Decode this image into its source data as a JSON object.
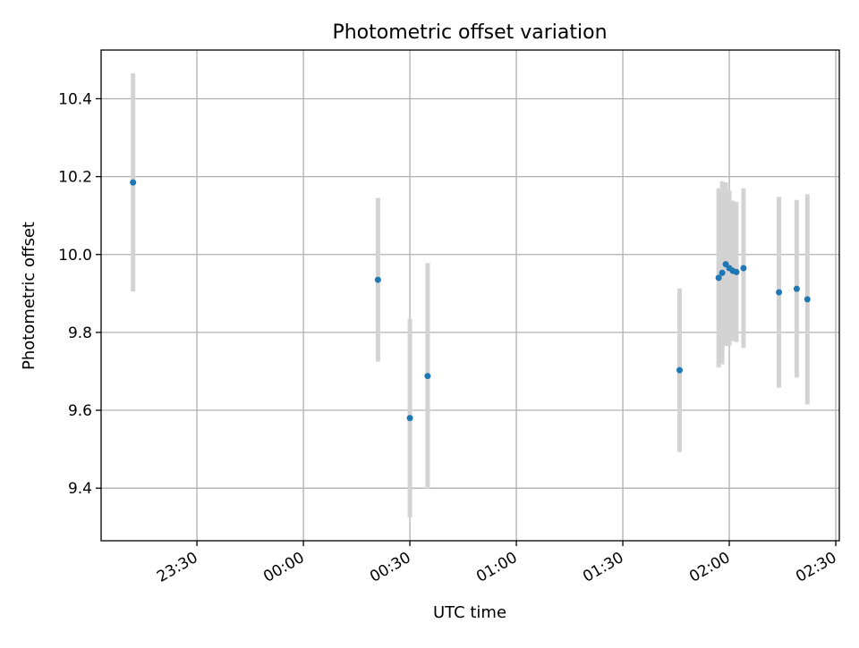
{
  "chart_data": {
    "type": "scatter",
    "title": "Photometric offset variation",
    "xlabel": "UTC time",
    "ylabel": "Photometric offset",
    "x_axis": "time",
    "xlim": [
      "23:03",
      "02:31"
    ],
    "ylim": [
      9.265,
      10.525
    ],
    "x_ticks": [
      "23:30",
      "00:00",
      "00:30",
      "01:00",
      "01:30",
      "02:00",
      "02:30"
    ],
    "y_ticks": [
      9.4,
      9.6,
      9.8,
      10.0,
      10.2,
      10.4
    ],
    "y_tick_labels": [
      "9.4",
      "9.6",
      "9.8",
      "10.0",
      "10.2",
      "10.4"
    ],
    "grid": true,
    "colors": {
      "points": "#1f77b4",
      "error_bars": "#d3d3d3",
      "grid": "#b0b0b0"
    },
    "points": [
      {
        "x": "23:12",
        "y": 10.185,
        "yerr": 0.28
      },
      {
        "x": "00:21",
        "y": 9.935,
        "yerr": 0.21
      },
      {
        "x": "00:30",
        "y": 9.58,
        "yerr": 0.255
      },
      {
        "x": "00:35",
        "y": 9.688,
        "yerr": 0.29
      },
      {
        "x": "01:46",
        "y": 9.703,
        "yerr": 0.21
      },
      {
        "x": "01:57",
        "y": 9.94,
        "yerr": 0.23
      },
      {
        "x": "01:58",
        "y": 9.953,
        "yerr": 0.235
      },
      {
        "x": "01:59",
        "y": 9.975,
        "yerr": 0.21
      },
      {
        "x": "02:00",
        "y": 9.965,
        "yerr": 0.2
      },
      {
        "x": "02:01",
        "y": 9.958,
        "yerr": 0.18
      },
      {
        "x": "02:02",
        "y": 9.955,
        "yerr": 0.18
      },
      {
        "x": "02:04",
        "y": 9.965,
        "yerr": 0.205
      },
      {
        "x": "02:14",
        "y": 9.903,
        "yerr": 0.245
      },
      {
        "x": "02:19",
        "y": 9.912,
        "yerr": 0.228
      },
      {
        "x": "02:22",
        "y": 9.885,
        "yerr": 0.27
      }
    ]
  }
}
